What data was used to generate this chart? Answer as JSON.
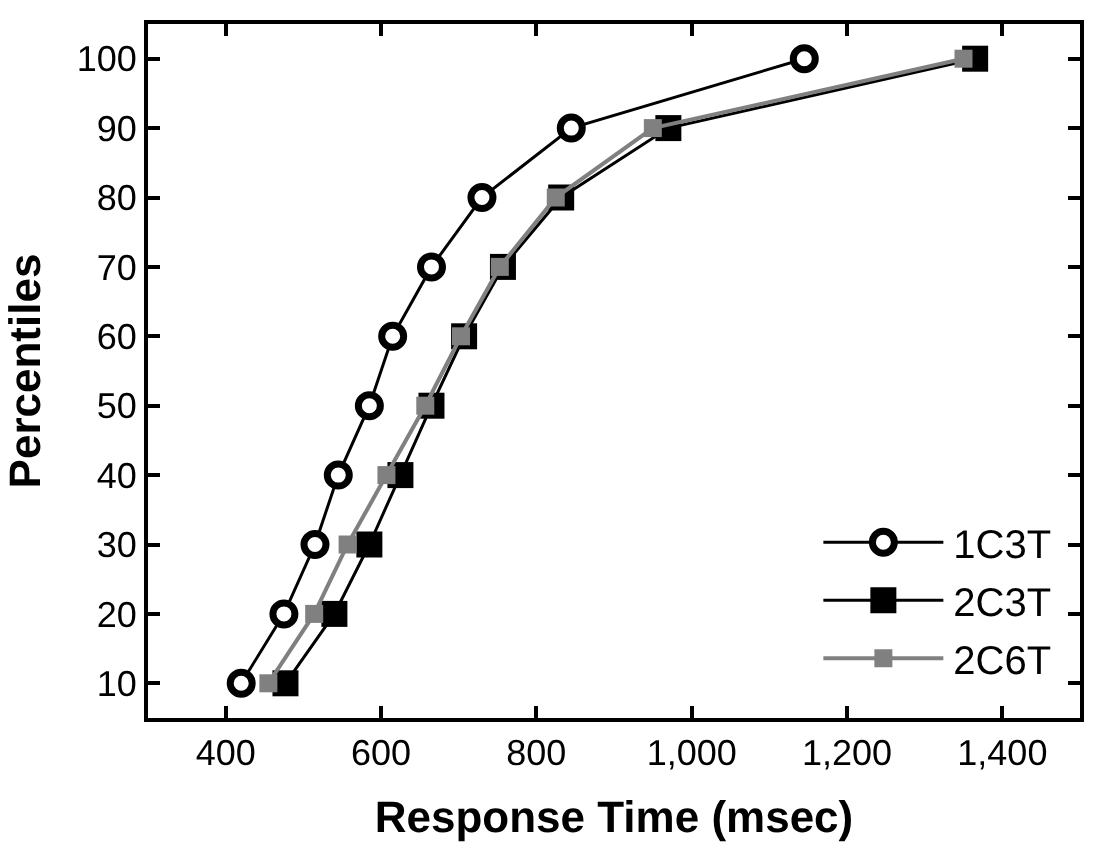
{
  "chart_data": {
    "type": "line",
    "xlabel": "Response Time (msec)",
    "ylabel": "Percentiles",
    "x": [
      10,
      20,
      30,
      40,
      50,
      60,
      70,
      80,
      90,
      100
    ],
    "orientation": "horizontal",
    "series": [
      {
        "name": "1C3T",
        "color": "#000000",
        "marker": "circle",
        "values": [
          420,
          475,
          515,
          545,
          585,
          615,
          665,
          730,
          845,
          1145
        ]
      },
      {
        "name": "2C3T",
        "color": "#000000",
        "marker": "square",
        "values": [
          477,
          540,
          585,
          625,
          665,
          707,
          757,
          832,
          970,
          1365
        ]
      },
      {
        "name": "2C6T",
        "color": "#808080",
        "marker": "square",
        "values": [
          455,
          514,
          557,
          607,
          657,
          703,
          753,
          825,
          950,
          1350
        ]
      }
    ],
    "xlim": [
      300,
      1500
    ],
    "xticks": [
      400,
      600,
      800,
      {
        "value": 1000,
        "label": "1,000"
      },
      {
        "value": 1200,
        "label": "1,200"
      },
      {
        "value": 1400,
        "label": "1,400"
      }
    ],
    "ylim": [
      5,
      105
    ],
    "yticks": [
      10,
      20,
      30,
      40,
      50,
      60,
      70,
      80,
      90,
      100
    ],
    "legend": "bottom right",
    "line_style": "solid"
  }
}
